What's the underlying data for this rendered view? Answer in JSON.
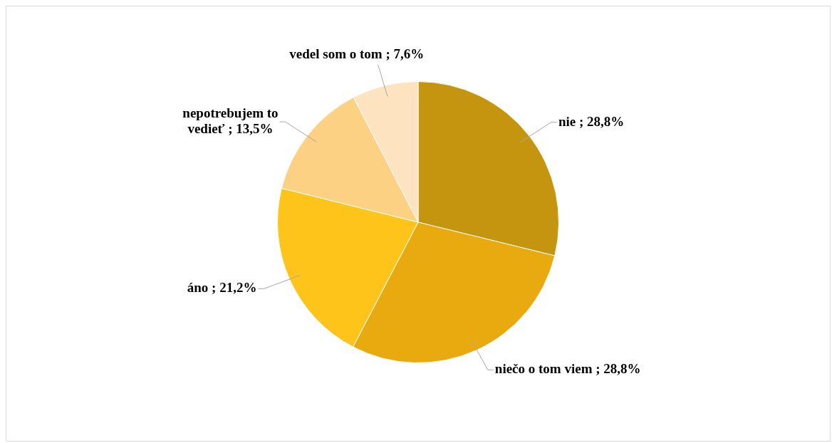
{
  "chart_data": {
    "type": "pie",
    "categories": [
      "nie",
      "niečo o tom viem",
      "áno",
      "nepotrebujem to vedieť",
      "vedel som o tom"
    ],
    "values": [
      28.8,
      28.8,
      21.2,
      13.5,
      7.6
    ],
    "colors": [
      "#c69510",
      "#e9aa10",
      "#ffc41a",
      "#fdd184",
      "#fde3bf"
    ],
    "value_labels": [
      "28,8%",
      "28,8%",
      "21,2%",
      "13,5%",
      "7,6%"
    ],
    "legend": false
  }
}
